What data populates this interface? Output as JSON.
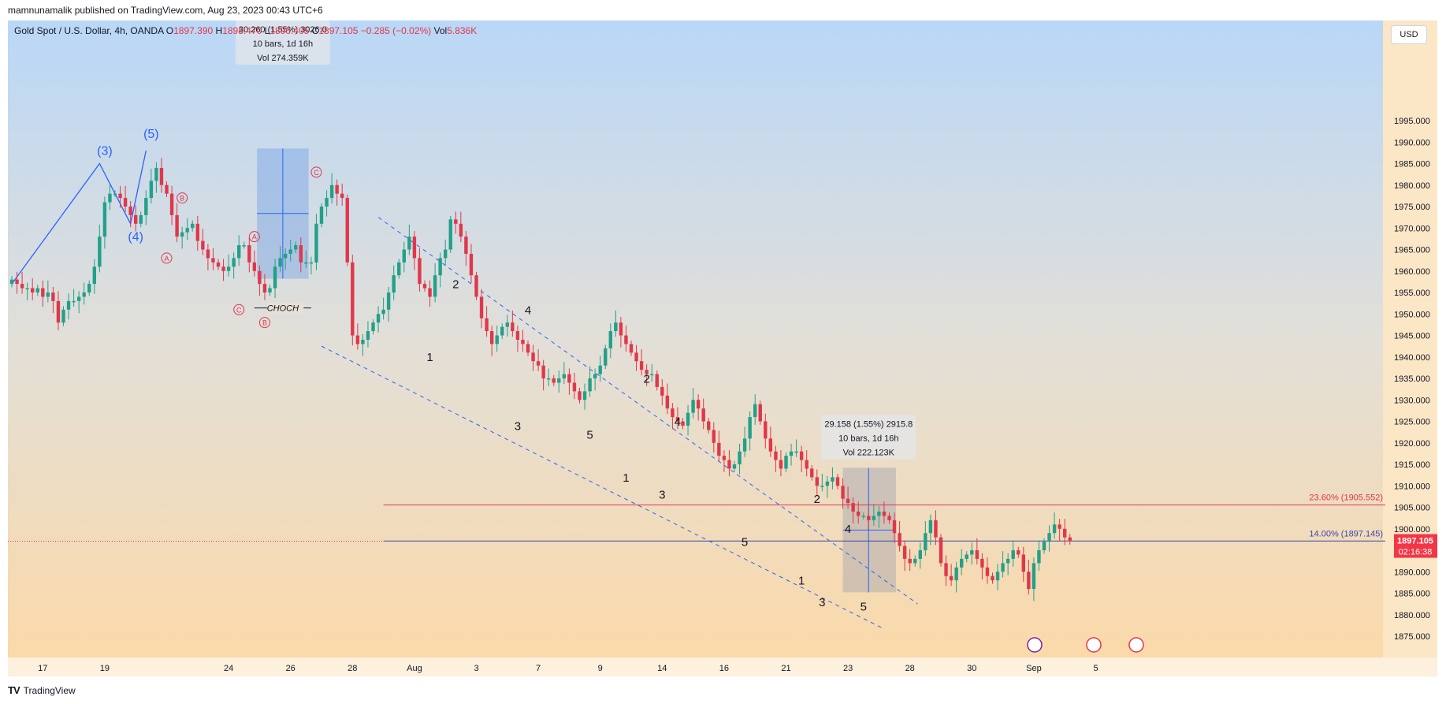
{
  "publisher": "mamnunamalik published on TradingView.com, Aug 23, 2023 00:43 UTC+6",
  "footer_brand": "TradingView",
  "legend": {
    "symbol": "Gold Spot / U.S. Dollar, 4h, OANDA",
    "o_label": "O",
    "o_val": "1897.390",
    "h_label": "H",
    "h_val": "1898.470",
    "l_label": "L",
    "l_val": "1896.405",
    "c_label": "C",
    "c_val": "1897.105",
    "change": "−0.285 (−0.02%)",
    "vol_label": "Vol",
    "vol_val": "5.836K"
  },
  "currency_button": "USD",
  "colors": {
    "up": "#22a08a",
    "down": "#e0374a",
    "wave": "#2962ff",
    "abc": "#e0374a",
    "fib": "#e0374a",
    "level": "#3949ab"
  },
  "chart_data": {
    "type": "candlestick",
    "symbol": "XAUUSD",
    "timeframe": "4h",
    "ylim": [
      1875,
      1995
    ],
    "y_ticks": [
      "1875.000",
      "1880.000",
      "1885.000",
      "1890.000",
      "1895.000",
      "1900.000",
      "1905.000",
      "1910.000",
      "1915.000",
      "1920.000",
      "1925.000",
      "1930.000",
      "1935.000",
      "1940.000",
      "1945.000",
      "1950.000",
      "1955.000",
      "1960.000",
      "1965.000",
      "1970.000",
      "1975.000",
      "1980.000",
      "1985.000",
      "1990.000",
      "1995.000"
    ],
    "x_ticks": [
      {
        "label": "17",
        "bar": 6
      },
      {
        "label": "19",
        "bar": 18
      },
      {
        "label": "24",
        "bar": 42
      },
      {
        "label": "26",
        "bar": 54
      },
      {
        "label": "28",
        "bar": 66
      },
      {
        "label": "Aug",
        "bar": 78
      },
      {
        "label": "3",
        "bar": 90
      },
      {
        "label": "7",
        "bar": 102
      },
      {
        "label": "9",
        "bar": 114
      },
      {
        "label": "14",
        "bar": 126
      },
      {
        "label": "16",
        "bar": 138
      },
      {
        "label": "21",
        "bar": 150
      },
      {
        "label": "23",
        "bar": 162
      },
      {
        "label": "28",
        "bar": 174
      },
      {
        "label": "30",
        "bar": 186
      },
      {
        "label": "Sep",
        "bar": 198
      },
      {
        "label": "5",
        "bar": 210
      }
    ],
    "closes": [
      1958,
      1957,
      1956,
      1956,
      1955,
      1956,
      1954,
      1955,
      1953,
      1948,
      1951,
      1953,
      1953,
      1954,
      1955,
      1957,
      1961,
      1968,
      1976,
      1978,
      1978,
      1977,
      1975,
      1973,
      1971,
      1973,
      1977,
      1981,
      1984,
      1980,
      1978,
      1973,
      1968,
      1969,
      1970,
      1971,
      1967,
      1965,
      1963,
      1962,
      1961,
      1960,
      1961,
      1963,
      1966,
      1966,
      1962,
      1960,
      1957,
      1955,
      1956,
      1961,
      1963,
      1964,
      1965,
      1966,
      1962,
      1962,
      1962,
      1971,
      1975,
      1977,
      1980,
      1978,
      1977,
      1962,
      1945,
      1943,
      1944,
      1946,
      1948,
      1950,
      1951,
      1955,
      1959,
      1962,
      1965,
      1968,
      1963,
      1957,
      1956,
      1954,
      1959,
      1963,
      1965,
      1972,
      1971,
      1968,
      1964,
      1959,
      1954,
      1949,
      1946,
      1943,
      1945,
      1947,
      1948,
      1946,
      1944,
      1943,
      1941,
      1939,
      1938,
      1935,
      1935,
      1934,
      1935,
      1936,
      1934,
      1932,
      1930,
      1932,
      1935,
      1936,
      1938,
      1942,
      1946,
      1948,
      1945,
      1943,
      1941,
      1939,
      1937,
      1936,
      1936,
      1933,
      1931,
      1928,
      1926,
      1925,
      1924,
      1927,
      1930,
      1928,
      1925,
      1923,
      1920,
      1917,
      1916,
      1914,
      1915,
      1918,
      1921,
      1926,
      1929,
      1925,
      1921,
      1918,
      1916,
      1914,
      1917,
      1918,
      1918,
      1916,
      1914,
      1912,
      1910,
      1910,
      1911,
      1912,
      1910,
      1907,
      1906,
      1904,
      1903,
      1903,
      1902,
      1903,
      1904,
      1903,
      1902,
      1899,
      1896,
      1893,
      1892,
      1893,
      1895,
      1899,
      1902,
      1898,
      1892,
      1889,
      1888,
      1891,
      1893,
      1894,
      1895,
      1893,
      1891,
      1889,
      1888,
      1890,
      1892,
      1893,
      1895,
      1894,
      1890,
      1886,
      1892,
      1895,
      1897,
      1899,
      1901,
      1900,
      1898,
      1897.105
    ],
    "fib_levels": [
      {
        "label": "23.60% (1905.552)",
        "value": 1905.552
      },
      {
        "label": "14.00% (1897.145)",
        "value": 1897.145
      }
    ],
    "last_price": {
      "price": "1897.105",
      "countdown": "02:16:38"
    },
    "wave_labels": [
      {
        "text": "(3)",
        "bar": 18,
        "price": 1987
      },
      {
        "text": "(4)",
        "bar": 24,
        "price": 1967
      },
      {
        "text": "(5)",
        "bar": 27,
        "price": 1991
      },
      {
        "text": "2",
        "bar": 86,
        "price": 1956
      },
      {
        "text": "4",
        "bar": 100,
        "price": 1950
      },
      {
        "text": "1",
        "bar": 81,
        "price": 1939
      },
      {
        "text": "3",
        "bar": 98,
        "price": 1923
      },
      {
        "text": "5",
        "bar": 112,
        "price": 1921
      },
      {
        "text": "2",
        "bar": 123,
        "price": 1934
      },
      {
        "text": "4",
        "bar": 129,
        "price": 1924
      },
      {
        "text": "1",
        "bar": 119,
        "price": 1911
      },
      {
        "text": "3",
        "bar": 126,
        "price": 1907
      },
      {
        "text": "5",
        "bar": 142,
        "price": 1896
      },
      {
        "text": "2",
        "bar": 156,
        "price": 1906
      },
      {
        "text": "4",
        "bar": 162,
        "price": 1899
      },
      {
        "text": "1",
        "bar": 153,
        "price": 1887
      },
      {
        "text": "3",
        "bar": 157,
        "price": 1882
      },
      {
        "text": "5",
        "bar": 165,
        "price": 1881
      }
    ],
    "abc_labels": [
      {
        "text": "B",
        "bar": 33,
        "price": 1977
      },
      {
        "text": "A",
        "bar": 30,
        "price": 1963
      },
      {
        "text": "A",
        "bar": 47,
        "price": 1968
      },
      {
        "text": "C",
        "bar": 44,
        "price": 1951
      },
      {
        "text": "B",
        "bar": 49,
        "price": 1948
      },
      {
        "text": "C",
        "bar": 59,
        "price": 1983
      }
    ],
    "annotations": {
      "choch": "CHOCH",
      "measure1": [
        "30.260 (1.55%) 3026.0",
        "10 bars, 1d 16h",
        "Vol 274.359K"
      ],
      "measure2": [
        "29.158 (1.55%) 2915.8",
        "10 bars, 1d 16h",
        "Vol 222.123K"
      ]
    }
  }
}
